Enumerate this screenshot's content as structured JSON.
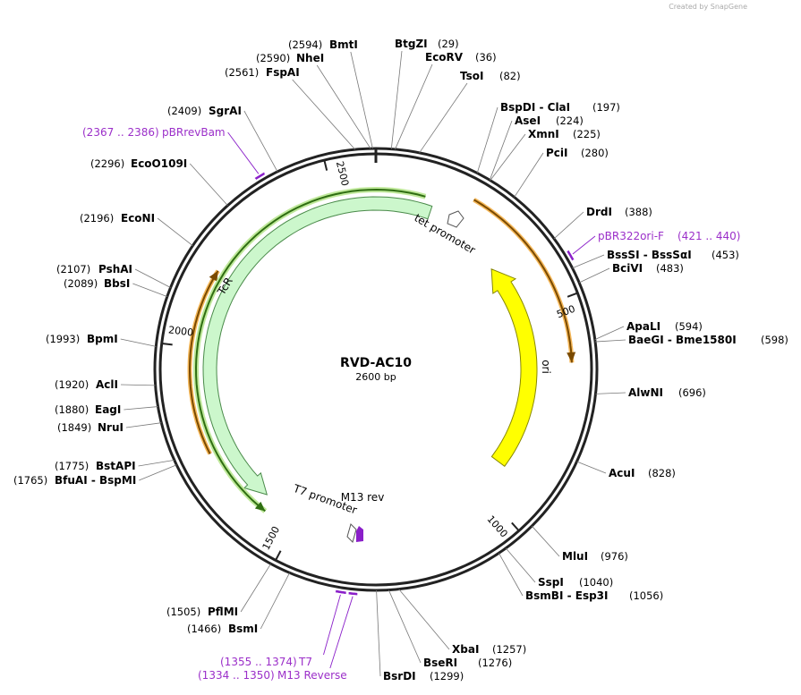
{
  "watermark": "Created by SnapGene",
  "map": {
    "name": "RVD-AC10",
    "length": "2600 bp",
    "ticks": [
      500,
      1000,
      1500,
      2000,
      2500
    ]
  },
  "enzymes": [
    {
      "name": "BtgZI",
      "position": "(29)"
    },
    {
      "name": "EcoRV",
      "position": "(36)"
    },
    {
      "name": "TsoI",
      "position": "(82)"
    },
    {
      "name": "BspDI - ClaI",
      "position": "(197)"
    },
    {
      "name": "AseI",
      "position": "(224)"
    },
    {
      "name": "XmnI",
      "position": "(225)"
    },
    {
      "name": "PciI",
      "position": "(280)"
    },
    {
      "name": "DrdI",
      "position": "(388)"
    },
    {
      "name": "BssSI - BssSαI",
      "position": "(453)"
    },
    {
      "name": "BciVI",
      "position": "(483)"
    },
    {
      "name": "ApaLI",
      "position": "(594)"
    },
    {
      "name": "BaeGI - Bme1580I",
      "position": "(598)"
    },
    {
      "name": "AlwNI",
      "position": "(696)"
    },
    {
      "name": "AcuI",
      "position": "(828)"
    },
    {
      "name": "MluI",
      "position": "(976)"
    },
    {
      "name": "SspI",
      "position": "(1040)"
    },
    {
      "name": "BsmBI - Esp3I",
      "position": "(1056)"
    },
    {
      "name": "XbaI",
      "position": "(1257)"
    },
    {
      "name": "BseRI",
      "position": "(1276)"
    },
    {
      "name": "BsrDI",
      "position": "(1299)"
    },
    {
      "name": "BmtI",
      "position": "(2594)"
    },
    {
      "name": "NheI",
      "position": "(2590)"
    },
    {
      "name": "FspAI",
      "position": "(2561)"
    },
    {
      "name": "SgrAI",
      "position": "(2409)"
    },
    {
      "name": "EcoO109I",
      "position": "(2296)"
    },
    {
      "name": "EcoNI",
      "position": "(2196)"
    },
    {
      "name": "PshAI",
      "position": "(2107)"
    },
    {
      "name": "BbsI",
      "position": "(2089)"
    },
    {
      "name": "BpmI",
      "position": "(1993)"
    },
    {
      "name": "AclI",
      "position": "(1920)"
    },
    {
      "name": "EagI",
      "position": "(1880)"
    },
    {
      "name": "NruI",
      "position": "(1849)"
    },
    {
      "name": "BstAPI",
      "position": "(1775)"
    },
    {
      "name": "BfuAI - BspMI",
      "position": "(1765)"
    },
    {
      "name": "PflMI",
      "position": "(1505)"
    },
    {
      "name": "BsmI",
      "position": "(1466)"
    }
  ],
  "primers": [
    {
      "name": "pBRrevBam",
      "range": "(2367 .. 2386)"
    },
    {
      "name": "pBR322ori-F",
      "range": "(421 .. 440)"
    },
    {
      "name": "T7",
      "range": "(1355 .. 1374)"
    },
    {
      "name": "M13 Reverse",
      "range": "(1334 .. 1350)"
    }
  ],
  "features": [
    {
      "name": "TcR"
    },
    {
      "name": "ori"
    },
    {
      "name": "tet promoter"
    },
    {
      "name": "T7 promoter"
    },
    {
      "name": "M13 rev"
    }
  ]
}
